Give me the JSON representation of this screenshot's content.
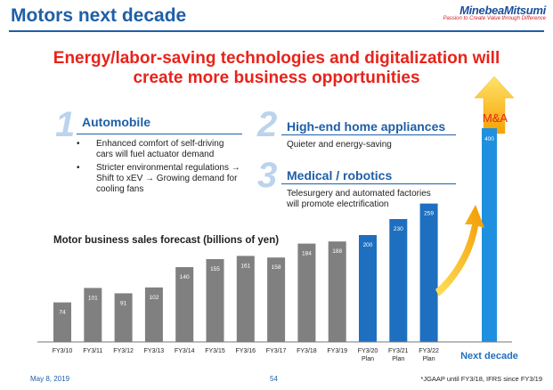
{
  "header": {
    "title": "Motors next decade"
  },
  "logo": {
    "name": "MinebeaMitsumi",
    "tagline": "Passion to Create Value through Difference"
  },
  "headline": {
    "line1": "Energy/labor-saving technologies and digitalization will",
    "line2": "create more business opportunities"
  },
  "sections": {
    "automobile": {
      "number": "1",
      "title": "Automobile",
      "bullets": [
        "Enhanced comfort of self-driving cars will fuel actuator demand",
        "Stricter environmental regulations → Shift to xEV → Growing demand for cooling fans"
      ]
    },
    "home": {
      "number": "2",
      "title": "High-end home appliances",
      "text": "Quieter and energy-saving"
    },
    "medical": {
      "number": "3",
      "title": "Medical / robotics",
      "text": "Telesurgery and automated factories will promote electrification"
    }
  },
  "chart_data": {
    "type": "bar",
    "title": "Motor business sales forecast (billions of yen)",
    "categories": [
      "FY3/10",
      "FY3/11",
      "FY3/12",
      "FY3/13",
      "FY3/14",
      "FY3/15",
      "FY3/16",
      "FY3/17",
      "FY3/18",
      "FY3/19",
      "FY3/20 Plan",
      "FY3/21 Plan",
      "FY3/22 Plan",
      "Next decade"
    ],
    "values": [
      74,
      101,
      91,
      102,
      140,
      155,
      161,
      158,
      184,
      188,
      200,
      230,
      259,
      400
    ],
    "data_labels": [
      "74",
      "101",
      "91",
      "102",
      "140",
      "155",
      "161",
      "158",
      "184",
      "188",
      "200",
      "230",
      "259",
      "400"
    ],
    "colors": [
      "#808080",
      "#808080",
      "#808080",
      "#808080",
      "#808080",
      "#808080",
      "#808080",
      "#808080",
      "#808080",
      "#808080",
      "#1f6fc0",
      "#1f6fc0",
      "#1f6fc0",
      "#1f8fe0"
    ],
    "annotation": "M&A",
    "grid": false
  },
  "footer": {
    "date": "May 8, 2019",
    "page": "54",
    "note": "*JGAAP until FY3/18, IFRS since FY3/19"
  }
}
